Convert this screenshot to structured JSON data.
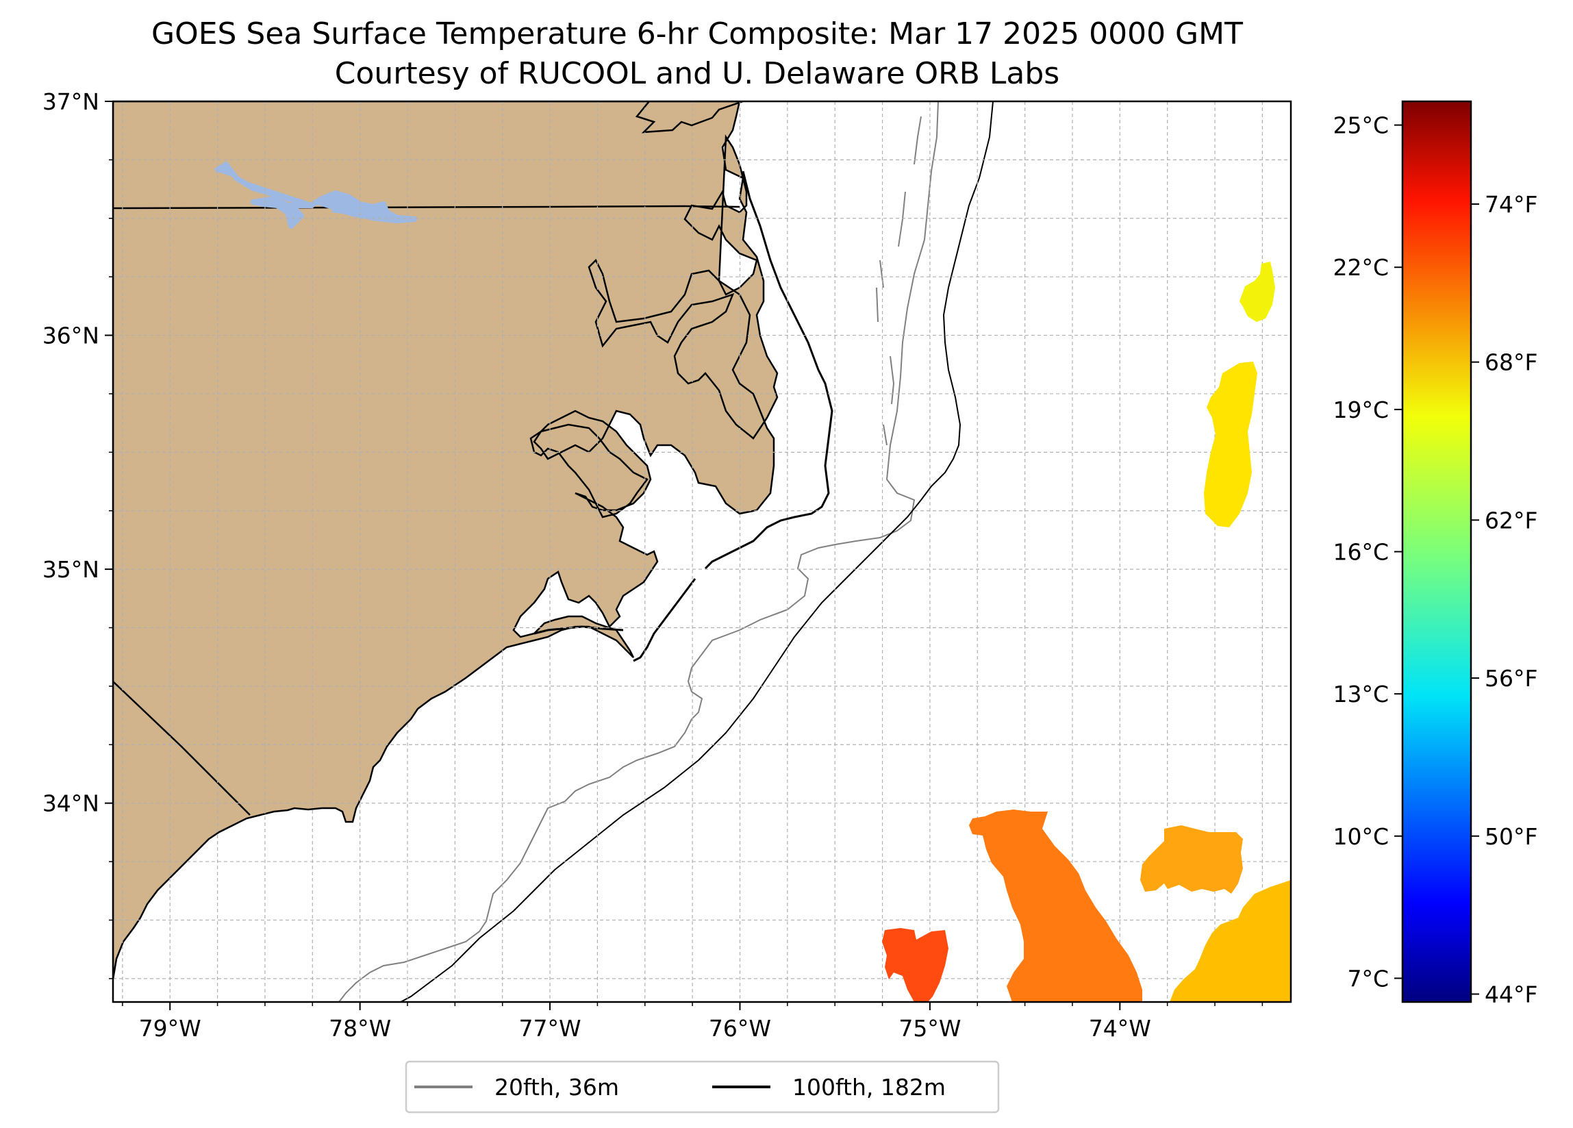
{
  "title": {
    "line1": "GOES Sea Surface Temperature 6-hr Composite: Mar 17 2025 0000 GMT",
    "line2": "Courtesy of RUCOOL and U. Delaware ORB Labs"
  },
  "map": {
    "lon_range": [
      -79.3,
      -73.1
    ],
    "lat_range": [
      33.15,
      37.0
    ],
    "lon_ticks": [
      {
        "value": -79,
        "label": "79°W"
      },
      {
        "value": -78,
        "label": "78°W"
      },
      {
        "value": -77,
        "label": "77°W"
      },
      {
        "value": -76,
        "label": "76°W"
      },
      {
        "value": -75,
        "label": "75°W"
      },
      {
        "value": -74,
        "label": "74°W"
      }
    ],
    "lat_ticks": [
      {
        "value": 37,
        "label": "37°N"
      },
      {
        "value": 36,
        "label": "36°N"
      },
      {
        "value": 35,
        "label": "35°N"
      },
      {
        "value": 34,
        "label": "34°N"
      }
    ],
    "grid": true,
    "land_color": "#d2b48c",
    "lake_color": "#9db8e2"
  },
  "legend": {
    "items": [
      {
        "label": "20fth, 36m",
        "color": "#808080"
      },
      {
        "label": "100fth, 182m",
        "color": "#000000"
      }
    ],
    "placement": "bottom-center"
  },
  "colorbar": {
    "colormap": "jet",
    "range_c": [
      6.5,
      25.5
    ],
    "celsius_ticks": [
      {
        "value": 25,
        "label": "25°C"
      },
      {
        "value": 22,
        "label": "22°C"
      },
      {
        "value": 19,
        "label": "19°C"
      },
      {
        "value": 16,
        "label": "16°C"
      },
      {
        "value": 13,
        "label": "13°C"
      },
      {
        "value": 10,
        "label": "10°C"
      },
      {
        "value": 7,
        "label": "7°C"
      }
    ],
    "fahrenheit_ticks": [
      {
        "value": 74,
        "label": "74°F"
      },
      {
        "value": 68,
        "label": "68°F"
      },
      {
        "value": 62,
        "label": "62°F"
      },
      {
        "value": 56,
        "label": "56°F"
      },
      {
        "value": 50,
        "label": "50°F"
      },
      {
        "value": 44,
        "label": "44°F"
      }
    ]
  },
  "sst_patches": [
    {
      "name": "sst-patch-north-yellow",
      "color": "#f2f20a",
      "approx_temp_c": 19.4
    },
    {
      "name": "sst-patch-center-yellow",
      "color": "#ffe400",
      "approx_temp_c": 18.8
    },
    {
      "name": "sst-patch-south-orange",
      "color": "#ff7a10",
      "approx_temp_c": 21.8
    },
    {
      "name": "sst-patch-southwest-red",
      "color": "#ff4a10",
      "approx_temp_c": 22.8
    },
    {
      "name": "sst-patch-southeast-orange",
      "color": "#ffa510",
      "approx_temp_c": 20.8
    },
    {
      "name": "sst-patch-far-southeast",
      "color": "#ffbe00",
      "approx_temp_c": 20.0
    }
  ]
}
